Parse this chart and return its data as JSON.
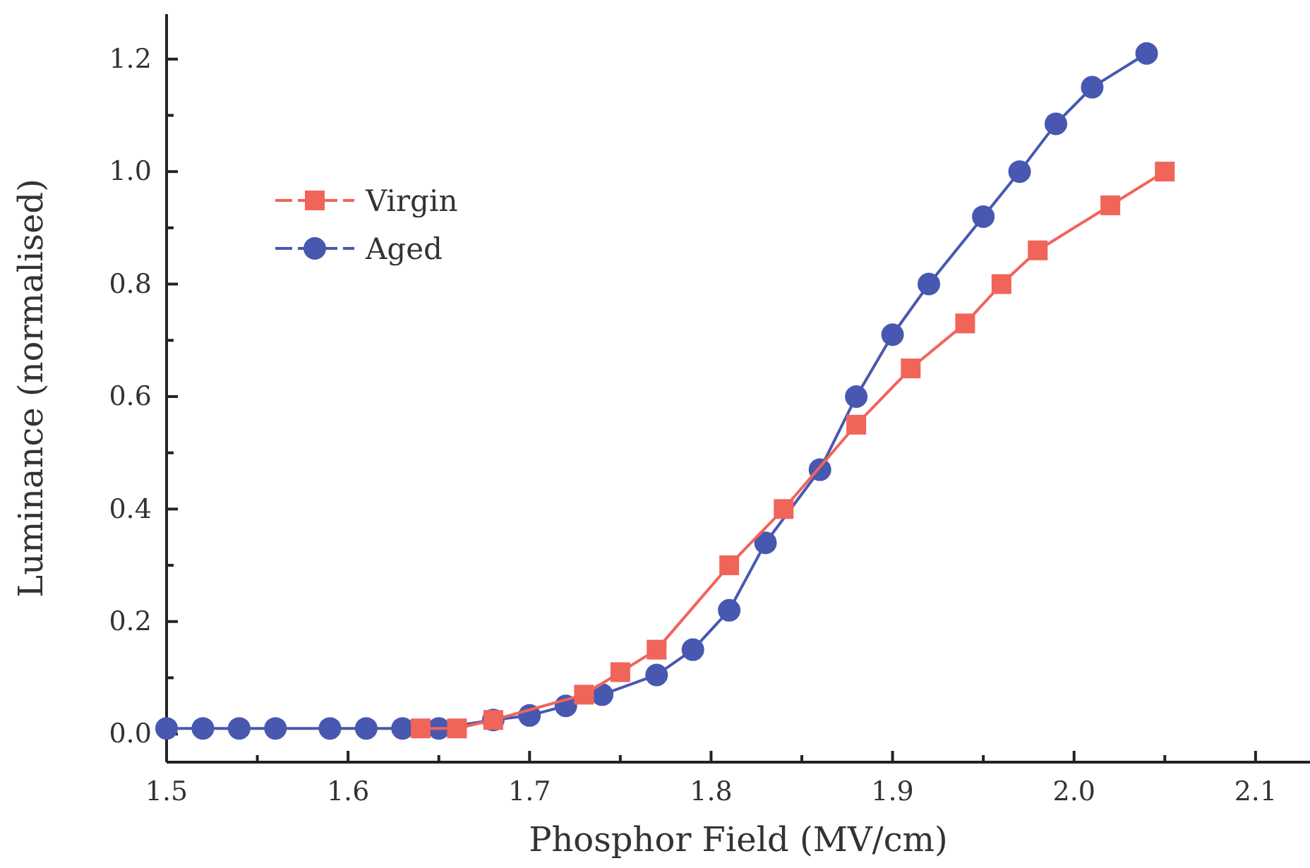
{
  "chart_data": {
    "type": "line",
    "xlabel": "Phosphor Field (MV/cm)",
    "ylabel": "Luminance (normalised)",
    "xlim": [
      1.5,
      2.13
    ],
    "ylim": [
      -0.05,
      1.28
    ],
    "xticks": [
      {
        "value": 1.5,
        "label": "1.5"
      },
      {
        "value": 1.55,
        "label": null
      },
      {
        "value": 1.6,
        "label": "1.6"
      },
      {
        "value": 1.65,
        "label": null
      },
      {
        "value": 1.7,
        "label": "1.7"
      },
      {
        "value": 1.75,
        "label": null
      },
      {
        "value": 1.8,
        "label": "1.8"
      },
      {
        "value": 1.85,
        "label": null
      },
      {
        "value": 1.9,
        "label": "1.9"
      },
      {
        "value": 1.95,
        "label": null
      },
      {
        "value": 2.0,
        "label": "2.0"
      },
      {
        "value": 2.05,
        "label": null
      },
      {
        "value": 2.1,
        "label": "2.1"
      }
    ],
    "yticks": [
      {
        "value": 0,
        "label": "0.0"
      },
      {
        "value": 0.1,
        "label": null
      },
      {
        "value": 0.2,
        "label": "0.2"
      },
      {
        "value": 0.3,
        "label": null
      },
      {
        "value": 0.4,
        "label": "0.4"
      },
      {
        "value": 0.5,
        "label": null
      },
      {
        "value": 0.6,
        "label": "0.6"
      },
      {
        "value": 0.7,
        "label": null
      },
      {
        "value": 0.8,
        "label": "0.8"
      },
      {
        "value": 0.9,
        "label": null
      },
      {
        "value": 1.0,
        "label": "1.0"
      },
      {
        "value": 1.1,
        "label": null
      },
      {
        "value": 1.2,
        "label": "1.2"
      }
    ],
    "legend": "top left",
    "grid": false,
    "line_style": "solid",
    "series": [
      {
        "name": "Virgin",
        "color": "#f0645a",
        "marker": "square",
        "x": [
          1.64,
          1.66,
          1.68,
          1.73,
          1.75,
          1.77,
          1.81,
          1.84,
          1.88,
          1.91,
          1.94,
          1.96,
          1.98,
          2.02,
          2.05
        ],
        "values": [
          0.01,
          0.01,
          0.025,
          0.07,
          0.11,
          0.15,
          0.3,
          0.4,
          0.55,
          0.65,
          0.73,
          0.8,
          0.86,
          0.94,
          1.0
        ]
      },
      {
        "name": "Aged",
        "color": "#4858b0",
        "marker": "circle",
        "x": [
          1.5,
          1.52,
          1.54,
          1.56,
          1.59,
          1.61,
          1.63,
          1.65,
          1.68,
          1.7,
          1.72,
          1.74,
          1.77,
          1.79,
          1.81,
          1.83,
          1.86,
          1.88,
          1.9,
          1.92,
          1.95,
          1.97,
          1.99,
          2.01,
          2.04
        ],
        "values": [
          0.01,
          0.01,
          0.01,
          0.01,
          0.01,
          0.01,
          0.01,
          0.01,
          0.025,
          0.033,
          0.05,
          0.07,
          0.105,
          0.15,
          0.22,
          0.34,
          0.47,
          0.6,
          0.71,
          0.8,
          0.92,
          1.0,
          1.085,
          1.15,
          1.21
        ]
      }
    ]
  }
}
